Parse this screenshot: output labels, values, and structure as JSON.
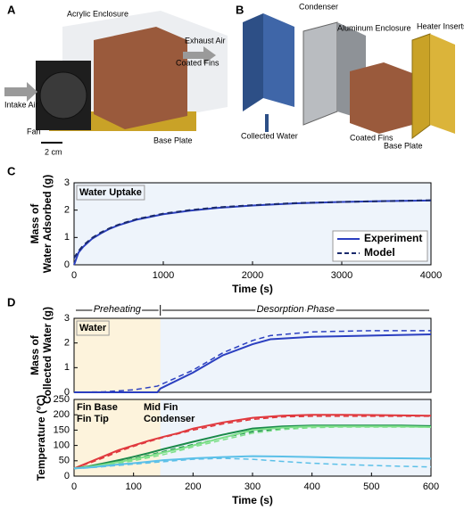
{
  "figure_a": {
    "panel": "A",
    "labels": [
      "Acrylic Enclosure",
      "Exhaust Air",
      "Coated Fins",
      "Intake Air",
      "Fan",
      "Base Plate"
    ],
    "scale_bar": "2 cm"
  },
  "figure_b": {
    "panel": "B",
    "labels": [
      "Condenser",
      "Aluminum Enclosure",
      "Heater Inserts",
      "Collected Water",
      "Coated Fins",
      "Base Plate"
    ]
  },
  "chart_data": [
    {
      "type": "line",
      "panel": "C",
      "annotation": "Water Uptake",
      "xlabel": "Time (s)",
      "ylabel": [
        "Mass of",
        "Water Adsorbed (g)"
      ],
      "x": [
        0,
        50,
        100,
        200,
        300,
        400,
        500,
        700,
        1000,
        1300,
        1600,
        2000,
        2500,
        3000,
        3500,
        4000
      ],
      "series": [
        {
          "name": "Experiment",
          "color": "#2b3fc0",
          "values": [
            0,
            0.45,
            0.65,
            0.95,
            1.15,
            1.32,
            1.45,
            1.65,
            1.85,
            1.98,
            2.08,
            2.17,
            2.25,
            2.3,
            2.33,
            2.35
          ]
        },
        {
          "name": "Model",
          "color": "#1a2a6c",
          "dash": true,
          "values": [
            0.25,
            0.5,
            0.7,
            0.98,
            1.18,
            1.34,
            1.47,
            1.67,
            1.87,
            2.0,
            2.1,
            2.18,
            2.26,
            2.3,
            2.33,
            2.36
          ]
        }
      ],
      "xlim": [
        0,
        4000
      ],
      "xticks": [
        0,
        1000,
        2000,
        3000,
        4000
      ],
      "ylim": [
        0,
        3
      ],
      "yticks": [
        0,
        1,
        2,
        3
      ],
      "legend": "lower right"
    },
    {
      "type": "line",
      "panel": "D",
      "annotation": "Water",
      "phases": [
        "Preheating",
        "Desorption Phase"
      ],
      "shaded_xlim": [
        0,
        145
      ],
      "ylabel": [
        "Mass of",
        "Collected Water (g)"
      ],
      "x": [
        0,
        50,
        100,
        140,
        145,
        200,
        250,
        300,
        330,
        400,
        500,
        600
      ],
      "series": [
        {
          "color": "#2b3fc0",
          "values": [
            0,
            0,
            0,
            0,
            0.15,
            0.8,
            1.5,
            1.95,
            2.15,
            2.25,
            2.3,
            2.35
          ],
          "model_values": [
            0,
            0.02,
            0.1,
            0.25,
            0.3,
            0.9,
            1.6,
            2.1,
            2.3,
            2.45,
            2.5,
            2.5
          ]
        }
      ],
      "xlim": [
        0,
        600
      ],
      "ylim": [
        0,
        3
      ],
      "yticks": [
        0,
        1,
        2,
        3
      ]
    },
    {
      "type": "line",
      "xlabel": "Time (s)",
      "ylabel": [
        "Temperature (°C)"
      ],
      "shaded_xlim": [
        0,
        145
      ],
      "x": [
        0,
        25,
        50,
        75,
        100,
        125,
        150,
        175,
        200,
        250,
        300,
        350,
        400,
        450,
        500,
        550,
        600
      ],
      "series": [
        {
          "name": "Fin Base",
          "color": "#e0393e",
          "values": [
            25,
            45,
            65,
            85,
            100,
            115,
            128,
            140,
            155,
            175,
            190,
            197,
            200,
            200,
            199,
            198,
            197
          ],
          "model_values": [
            25,
            42,
            60,
            80,
            97,
            112,
            126,
            138,
            150,
            170,
            185,
            193,
            195,
            195,
            195,
            195,
            195
          ]
        },
        {
          "name": "Mid Fin",
          "color": "#1a8a4a",
          "values": [
            25,
            32,
            42,
            52,
            63,
            75,
            88,
            100,
            112,
            135,
            155,
            162,
            165,
            165,
            165,
            165,
            163
          ],
          "model_values": [
            25,
            30,
            38,
            47,
            57,
            68,
            80,
            92,
            103,
            125,
            145,
            155,
            160,
            162,
            162,
            162,
            162
          ]
        },
        {
          "name": "Fin Tip",
          "color": "#7ee08a",
          "values": [
            25,
            30,
            38,
            46,
            55,
            65,
            77,
            88,
            100,
            125,
            150,
            158,
            162,
            162,
            162,
            162,
            160
          ],
          "model_values": [
            25,
            28,
            34,
            42,
            50,
            60,
            70,
            82,
            95,
            118,
            140,
            152,
            158,
            160,
            160,
            160,
            160
          ]
        },
        {
          "name": "Condenser",
          "color": "#5cc0e8",
          "values": [
            25,
            28,
            33,
            38,
            42,
            47,
            52,
            55,
            58,
            62,
            65,
            64,
            62,
            60,
            59,
            58,
            57
          ],
          "model_values": [
            25,
            27,
            31,
            35,
            39,
            43,
            47,
            51,
            55,
            58,
            55,
            48,
            42,
            38,
            35,
            32,
            30
          ]
        }
      ],
      "xlim": [
        0,
        600
      ],
      "xticks": [
        0,
        100,
        200,
        300,
        400,
        500,
        600
      ],
      "ylim": [
        0,
        250
      ],
      "yticks": [
        0,
        50,
        100,
        150,
        200,
        250
      ],
      "legend": "upper left"
    }
  ]
}
